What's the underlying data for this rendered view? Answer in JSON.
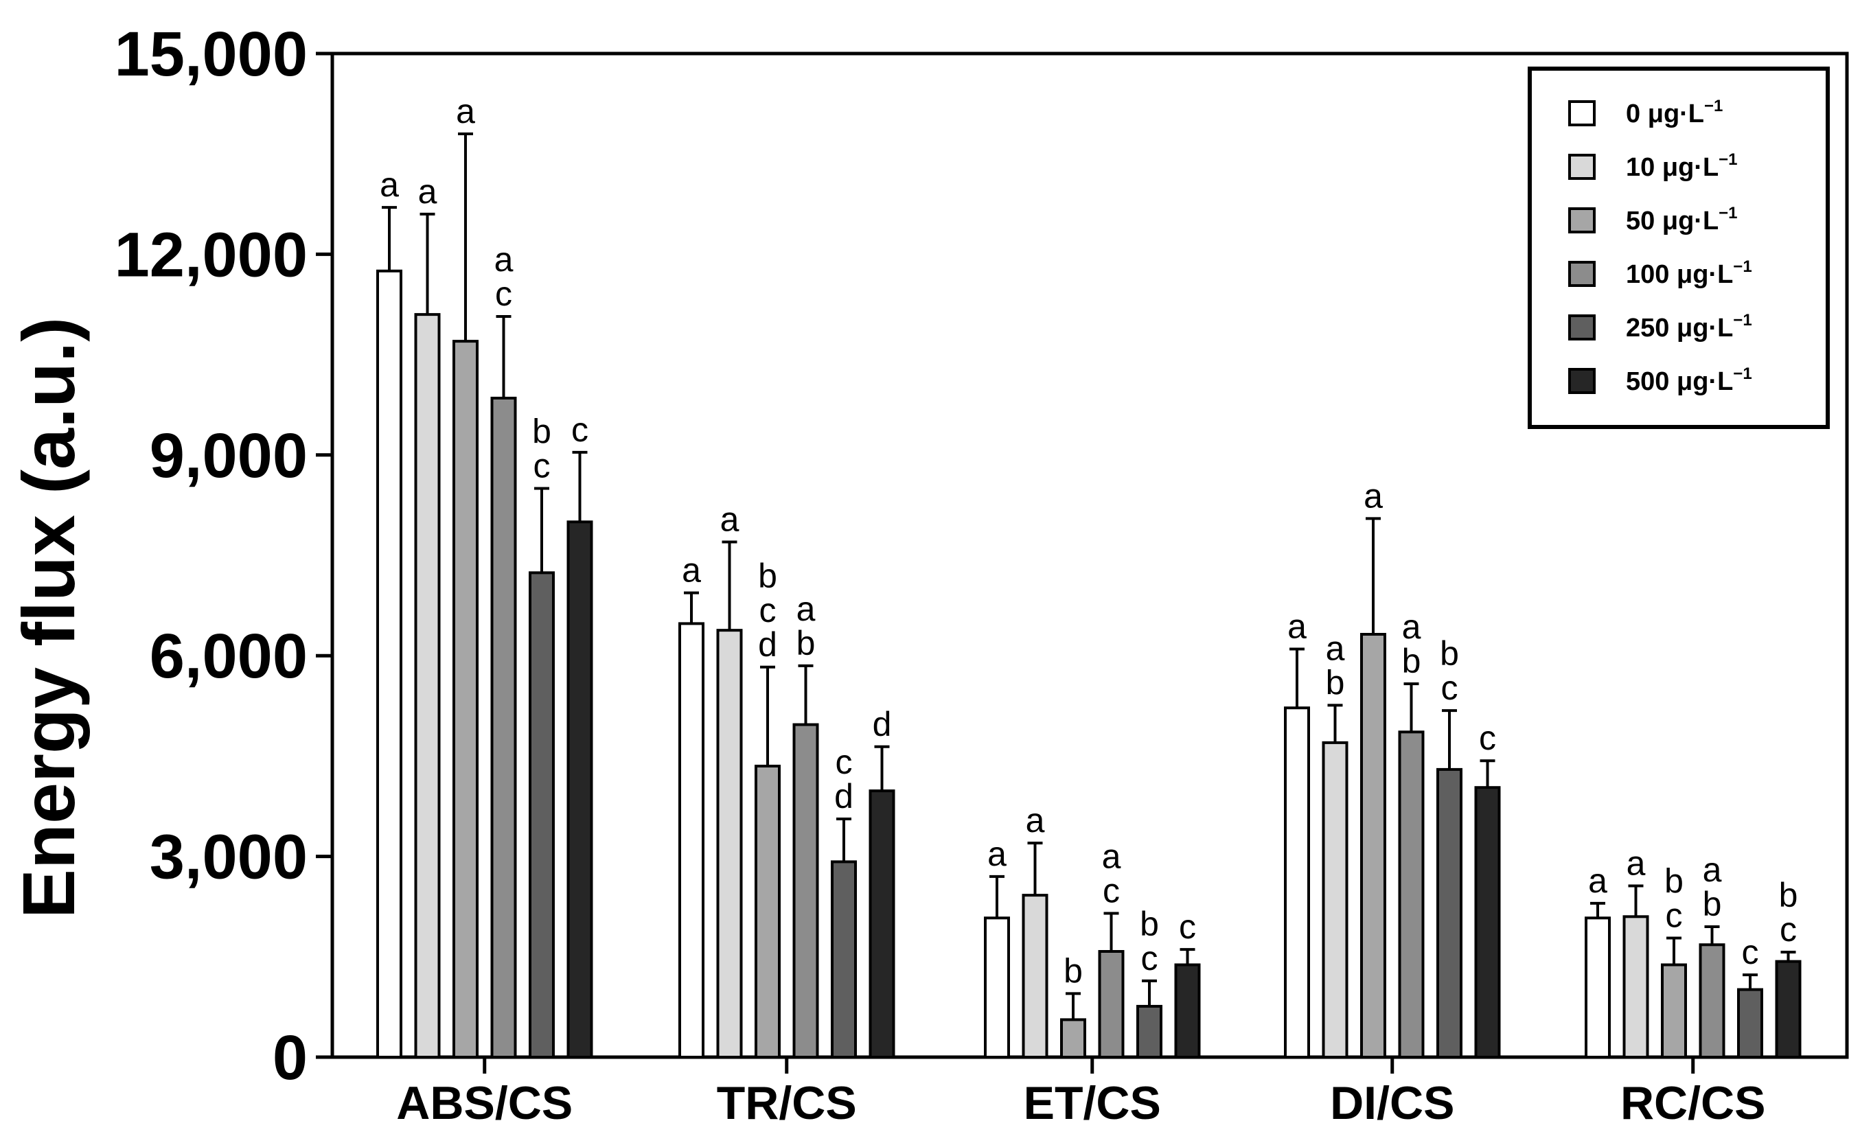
{
  "chart_data": {
    "type": "bar",
    "title": "",
    "xlabel": "",
    "ylabel": "Energy flux (a.u.)",
    "ylim": [
      0,
      15000
    ],
    "yticks": [
      0,
      3000,
      6000,
      9000,
      12000,
      15000
    ],
    "ytick_labels": [
      "0",
      "3,000",
      "6,000",
      "9,000",
      "12,000",
      "15,000"
    ],
    "categories": [
      "ABS/CS",
      "TR/CS",
      "ET/CS",
      "DI/CS",
      "RC/CS"
    ],
    "legend_position": "top-right",
    "series": [
      {
        "name": "0 μg·L",
        "sup": "−1",
        "color": "#ffffff",
        "values": [
          11750,
          6480,
          2080,
          5220,
          2080
        ],
        "errors": [
          950,
          460,
          620,
          880,
          220
        ],
        "letters": [
          "a",
          "a",
          "a",
          "a",
          "a"
        ]
      },
      {
        "name": "10 μg·L",
        "sup": "−1",
        "color": "#d9d9d9",
        "values": [
          11100,
          6380,
          2420,
          4700,
          2100
        ],
        "errors": [
          1500,
          1320,
          780,
          560,
          460
        ],
        "letters": [
          "a",
          "a",
          "a",
          "a\nb",
          "a"
        ]
      },
      {
        "name": "50 μg·L",
        "sup": "−1",
        "color": "#a6a6a6",
        "values": [
          10700,
          4350,
          560,
          6320,
          1380
        ],
        "errors": [
          3100,
          1480,
          390,
          1730,
          400
        ],
        "letters": [
          "a",
          "b\nc\nd",
          "b",
          "a",
          "b\nc"
        ]
      },
      {
        "name": "100 μg·L",
        "sup": "−1",
        "color": "#8c8c8c",
        "values": [
          9850,
          4970,
          1580,
          4860,
          1680
        ],
        "errors": [
          1220,
          880,
          570,
          720,
          270
        ],
        "letters": [
          "a\nc",
          "a\nb",
          "a\nc",
          "a\nb",
          "a\nb"
        ]
      },
      {
        "name": "250 μg·L",
        "sup": "−1",
        "color": "#5f5f5f",
        "values": [
          7240,
          2920,
          760,
          4300,
          1010
        ],
        "errors": [
          1260,
          640,
          380,
          880,
          220
        ],
        "letters": [
          "b\nc",
          "c\nd",
          "b\nc",
          "b\nc",
          "c"
        ]
      },
      {
        "name": "500 μg·L",
        "sup": "−1",
        "color": "#262626",
        "values": [
          8000,
          3980,
          1380,
          4030,
          1430
        ],
        "errors": [
          1040,
          660,
          230,
          400,
          140
        ],
        "letters": [
          "c",
          "d",
          "c",
          "c",
          "b\nc"
        ]
      }
    ]
  }
}
